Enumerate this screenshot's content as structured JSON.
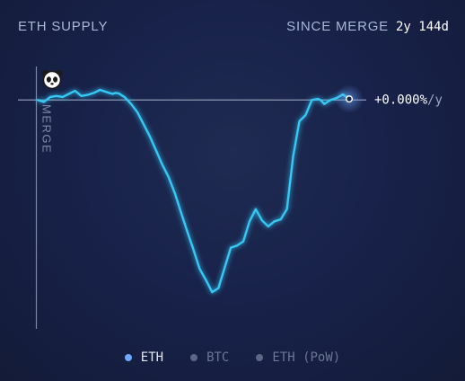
{
  "header": {
    "title": "ETH SUPPLY",
    "since_label": "SINCE MERGE",
    "since_value": "2y 144d"
  },
  "chart_data": {
    "type": "line",
    "title": "ETH SUPPLY",
    "y_unit": "%/y",
    "reference_line": {
      "value": 0,
      "label": "+0.000%/y"
    },
    "event_marker": {
      "label": "MERGE"
    },
    "ylim": [
      -2.05,
      0.1
    ],
    "grid": false,
    "legend_placement": "bottom-center",
    "series": [
      {
        "name": "ETH",
        "color": "#35c8f5",
        "active": true,
        "x": [
          0,
          2,
          4,
          6,
          8,
          9,
          10,
          12,
          14,
          16,
          18,
          20,
          22,
          24,
          26,
          28,
          30,
          32,
          34,
          36,
          38,
          40,
          42,
          44,
          46,
          48,
          50,
          52,
          54,
          56,
          58,
          60,
          62,
          64,
          66,
          68,
          70,
          72,
          74,
          75,
          76,
          78,
          80,
          82,
          84,
          86,
          88,
          90,
          92,
          94,
          96,
          98,
          100
        ],
        "values": [
          0.01,
          0.055,
          0.02,
          0.0,
          -0.04,
          -0.005,
          0.01,
          0.0,
          -0.15,
          -0.21,
          -0.56,
          -1.08,
          -1.18,
          -1.2,
          -1.25,
          -1.19,
          -1.08,
          -1.2,
          -1.4,
          -1.44,
          -1.46,
          -1.66,
          -1.86,
          -1.9,
          -1.78,
          -1.67,
          -1.48,
          -1.3,
          -1.11,
          -0.92,
          -0.76,
          -0.64,
          -0.5,
          -0.36,
          -0.24,
          -0.12,
          -0.04,
          0.025,
          0.065,
          0.07,
          0.06,
          0.08,
          0.1,
          0.07,
          0.05,
          0.04,
          0.09,
          0.06,
          0.03,
          0.04,
          0.03,
          -0.02,
          0.0
        ]
      }
    ]
  },
  "legend": {
    "items": [
      {
        "label": "ETH",
        "color": "#6ea8ff"
      },
      {
        "label": "BTC",
        "color": "#5c6787"
      },
      {
        "label": "ETH (PoW)",
        "color": "#5c6787"
      }
    ]
  }
}
